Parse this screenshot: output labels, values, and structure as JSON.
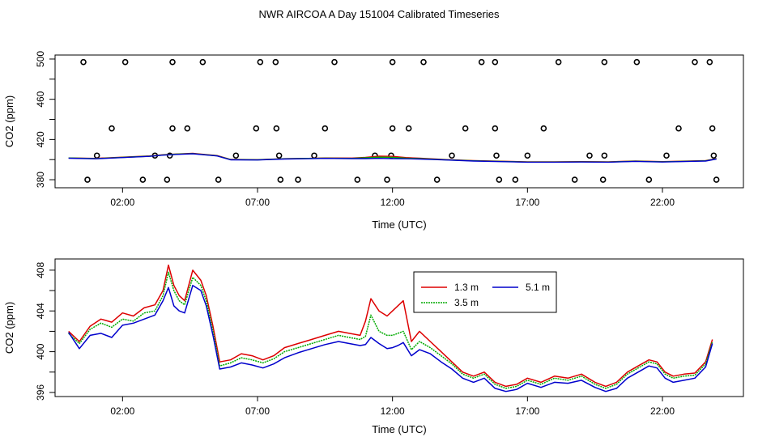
{
  "title": "NWR AIRCOA A  Day 151004  Calibrated Timeseries",
  "chart_data": [
    {
      "type": "scatter",
      "xlabel": "Time (UTC)",
      "ylabel": "CO2 (ppm)",
      "xlim": [
        -0.5,
        25.0
      ],
      "ylim": [
        372,
        504
      ],
      "xticks": [
        2,
        7,
        12,
        17,
        22
      ],
      "xtick_labels": [
        "02:00",
        "07:00",
        "12:00",
        "17:00",
        "22:00"
      ],
      "yticks": [
        380,
        420,
        460,
        500
      ],
      "ytick_labels": [
        "380",
        "420",
        "460",
        "500"
      ],
      "yminor_ticks": [
        400,
        440,
        480
      ],
      "outliers": {
        "name": "flagged points",
        "x": [
          0.55,
          2.1,
          3.85,
          4.97,
          7.1,
          7.67,
          9.85,
          12.0,
          13.15,
          15.3,
          15.8,
          18.15,
          19.85,
          21.05,
          23.2,
          23.75,
          1.6,
          3.85,
          4.4,
          6.95,
          7.7,
          9.5,
          12.0,
          12.6,
          14.7,
          15.8,
          17.6,
          22.6,
          23.85,
          1.05,
          3.2,
          3.75,
          6.2,
          7.8,
          9.1,
          11.35,
          11.95,
          14.2,
          15.85,
          17.0,
          19.3,
          19.85,
          22.15,
          23.9,
          0.7,
          2.75,
          3.65,
          5.55,
          7.85,
          8.5,
          10.7,
          11.8,
          13.65,
          15.95,
          16.55,
          18.75,
          19.8,
          21.5,
          24.0
        ],
        "y": [
          497,
          497,
          497,
          497,
          497,
          497,
          497,
          497,
          497,
          497,
          497,
          497,
          497,
          497,
          497,
          497,
          431,
          431,
          431,
          431,
          431,
          431,
          431,
          431,
          431,
          431,
          431,
          431,
          431,
          404,
          404,
          404,
          404,
          404,
          404,
          404,
          404,
          404,
          404,
          404,
          404,
          404,
          404,
          404,
          380,
          380,
          380,
          380,
          380,
          380,
          380,
          380,
          380,
          380,
          380,
          380,
          380,
          380,
          380
        ]
      },
      "line_x": [
        0,
        1,
        2,
        3,
        3.5,
        4.0,
        4.6,
        5.5,
        6,
        7,
        8,
        9,
        9.5,
        10.5,
        11,
        11.5,
        12,
        12.5,
        13,
        14,
        15,
        16,
        17,
        18,
        19,
        20,
        21,
        22,
        23,
        23.6,
        24
      ],
      "series": [
        {
          "name": "1.3 m",
          "color": "#dd0000",
          "values": [
            401.6,
            401.2,
            402.4,
            403.6,
            404.8,
            405.6,
            406.2,
            404.0,
            400.2,
            399.9,
            400.9,
            401.3,
            401.6,
            401.5,
            402.2,
            403.4,
            403.2,
            402.0,
            401.4,
            400.0,
            399.0,
            398.4,
            397.8,
            397.8,
            398.0,
            397.8,
            398.6,
            398.0,
            398.6,
            399.0,
            401.0
          ]
        },
        {
          "name": "3.5 m",
          "color": "#00aa00",
          "values": [
            401.6,
            401.0,
            402.2,
            403.4,
            404.6,
            405.4,
            406.0,
            403.8,
            400.0,
            399.8,
            400.8,
            401.2,
            401.4,
            401.2,
            401.8,
            402.4,
            402.2,
            401.4,
            401.0,
            399.8,
            398.8,
            398.2,
            397.6,
            397.6,
            397.8,
            397.6,
            398.4,
            397.8,
            398.4,
            398.8,
            400.8
          ]
        },
        {
          "name": "5.1 m",
          "color": "#0000cc",
          "values": [
            401.4,
            400.8,
            402.0,
            403.2,
            404.4,
            405.2,
            405.8,
            403.6,
            399.8,
            399.6,
            400.6,
            401.0,
            401.2,
            401.0,
            401.0,
            401.2,
            401.0,
            400.8,
            400.6,
            399.6,
            398.6,
            398.0,
            397.4,
            397.4,
            397.6,
            397.4,
            398.2,
            397.6,
            398.2,
            398.6,
            400.6
          ]
        }
      ]
    },
    {
      "type": "line",
      "xlabel": "Time (UTC)",
      "ylabel": "CO2 (ppm)",
      "xlim": [
        -0.5,
        25.0
      ],
      "ylim": [
        395.6,
        409.1
      ],
      "xticks": [
        2,
        7,
        12,
        17,
        22
      ],
      "xtick_labels": [
        "02:00",
        "07:00",
        "12:00",
        "17:00",
        "22:00"
      ],
      "yticks": [
        396,
        400,
        404,
        408
      ],
      "ytick_labels": [
        "396",
        "400",
        "404",
        "408"
      ],
      "yminor_ticks": [
        398,
        402,
        406
      ],
      "legend_position": "top-center",
      "x": [
        0.0,
        0.4,
        0.8,
        1.2,
        1.6,
        2.0,
        2.4,
        2.8,
        3.2,
        3.5,
        3.7,
        3.9,
        4.1,
        4.3,
        4.6,
        4.9,
        5.1,
        5.35,
        5.6,
        6.0,
        6.4,
        6.8,
        7.2,
        7.6,
        8.0,
        8.5,
        9.0,
        9.5,
        10.0,
        10.4,
        10.8,
        11.0,
        11.2,
        11.5,
        11.8,
        12.0,
        12.2,
        12.4,
        12.7,
        13.0,
        13.4,
        13.8,
        14.2,
        14.6,
        15.0,
        15.4,
        15.8,
        16.2,
        16.6,
        17.0,
        17.5,
        18.0,
        18.5,
        19.0,
        19.5,
        19.9,
        20.3,
        20.7,
        21.1,
        21.5,
        21.8,
        22.1,
        22.4,
        22.8,
        23.2,
        23.6,
        23.85
      ],
      "series": [
        {
          "name": "1.3 m",
          "color": "#dd0000",
          "values": [
            402.0,
            401.0,
            402.5,
            403.2,
            402.9,
            403.8,
            403.5,
            404.3,
            404.6,
            406.0,
            408.5,
            406.5,
            405.5,
            405.0,
            408.0,
            407.0,
            405.5,
            402.5,
            399.0,
            399.2,
            399.8,
            399.6,
            399.2,
            399.6,
            400.4,
            400.8,
            401.2,
            401.6,
            402.0,
            401.8,
            401.6,
            403.0,
            405.2,
            404.0,
            403.5,
            404.0,
            404.5,
            405.0,
            401.0,
            402.0,
            401.0,
            400.0,
            399.0,
            398.0,
            397.6,
            398.0,
            397.0,
            396.6,
            396.8,
            397.4,
            397.0,
            397.6,
            397.4,
            397.8,
            397.0,
            396.6,
            397.0,
            398.0,
            398.6,
            399.2,
            399.0,
            398.0,
            397.6,
            397.8,
            397.9,
            399.0,
            401.2
          ]
        },
        {
          "name": "3.5 m",
          "color": "#00aa00",
          "values": [
            401.8,
            400.8,
            402.2,
            402.8,
            402.4,
            403.2,
            403.0,
            403.8,
            404.0,
            405.5,
            407.8,
            406.0,
            405.0,
            404.6,
            407.3,
            406.5,
            405.0,
            402.0,
            398.6,
            398.9,
            399.4,
            399.2,
            398.9,
            399.3,
            400.0,
            400.4,
            400.8,
            401.2,
            401.6,
            401.4,
            401.2,
            401.5,
            403.6,
            402.0,
            401.6,
            401.6,
            401.8,
            402.0,
            400.2,
            401.0,
            400.4,
            399.6,
            398.8,
            397.8,
            397.4,
            397.8,
            396.8,
            396.4,
            396.6,
            397.2,
            396.8,
            397.4,
            397.2,
            397.6,
            396.8,
            396.4,
            396.8,
            397.8,
            398.4,
            399.0,
            398.8,
            397.8,
            397.4,
            397.6,
            397.7,
            398.8,
            401.0
          ]
        },
        {
          "name": "5.1 m",
          "color": "#0000cc",
          "values": [
            401.9,
            400.3,
            401.6,
            401.8,
            401.4,
            402.6,
            402.8,
            403.2,
            403.6,
            405.0,
            406.3,
            404.5,
            404.0,
            403.8,
            406.5,
            406.0,
            404.5,
            401.6,
            398.3,
            398.5,
            398.9,
            398.7,
            398.4,
            398.8,
            399.4,
            399.9,
            400.3,
            400.7,
            401.0,
            400.8,
            400.6,
            400.7,
            401.4,
            400.8,
            400.3,
            400.4,
            400.6,
            400.9,
            399.6,
            400.2,
            399.8,
            399.0,
            398.3,
            397.4,
            397.0,
            397.4,
            396.4,
            396.1,
            396.3,
            396.9,
            396.5,
            397.0,
            396.9,
            397.2,
            396.5,
            396.1,
            396.4,
            397.4,
            398.0,
            398.6,
            398.4,
            397.4,
            397.0,
            397.2,
            397.4,
            398.5,
            400.8
          ]
        }
      ]
    }
  ]
}
